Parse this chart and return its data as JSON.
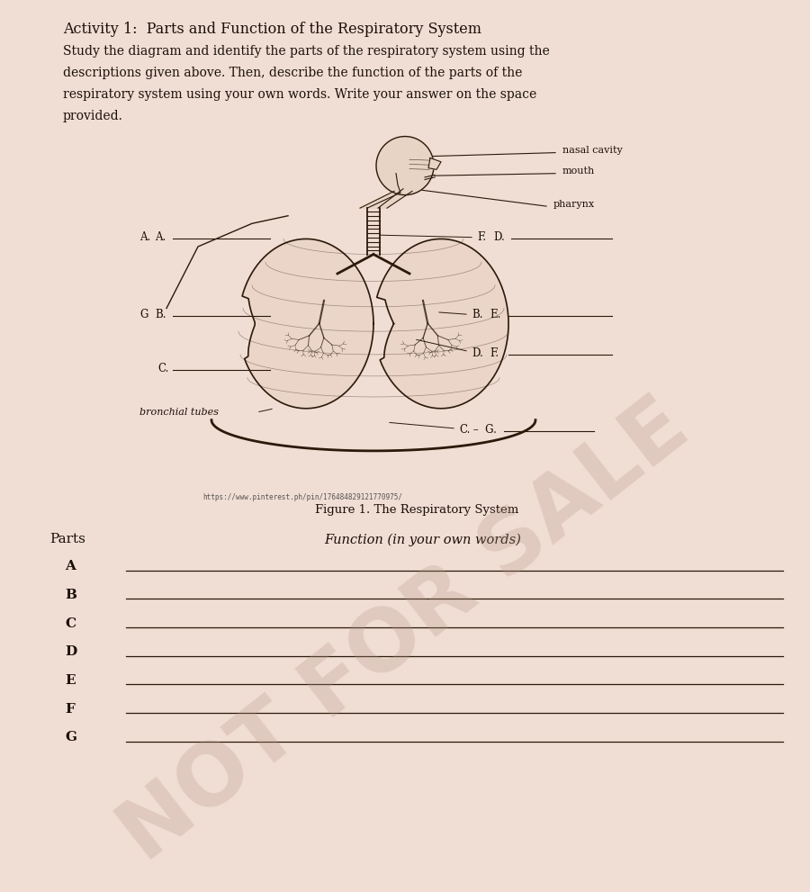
{
  "bg_color": "#f0ddd4",
  "text_color": "#1a1008",
  "line_color": "#2a1a0a",
  "title": "Activity 1:  Parts and Function of the Respiratory System",
  "instructions_lines": [
    "Study the diagram and identify the parts of the respiratory system using the",
    "descriptions given above. Then, describe the function of the parts of the",
    "respiratory system using your own words. Write your answer on the space",
    "provided."
  ],
  "figure_caption": "Figure 1. The Respiratory System",
  "url_text": "https://www.pinterest.ph/pin/176484829121770975/",
  "watermark": "NOT FOR SALE",
  "parts_list": [
    "A",
    "B",
    "C",
    "D",
    "E",
    "F",
    "G"
  ],
  "font_size_title": 11.5,
  "font_size_body": 10,
  "font_size_label": 8.5,
  "font_size_parts": 11
}
